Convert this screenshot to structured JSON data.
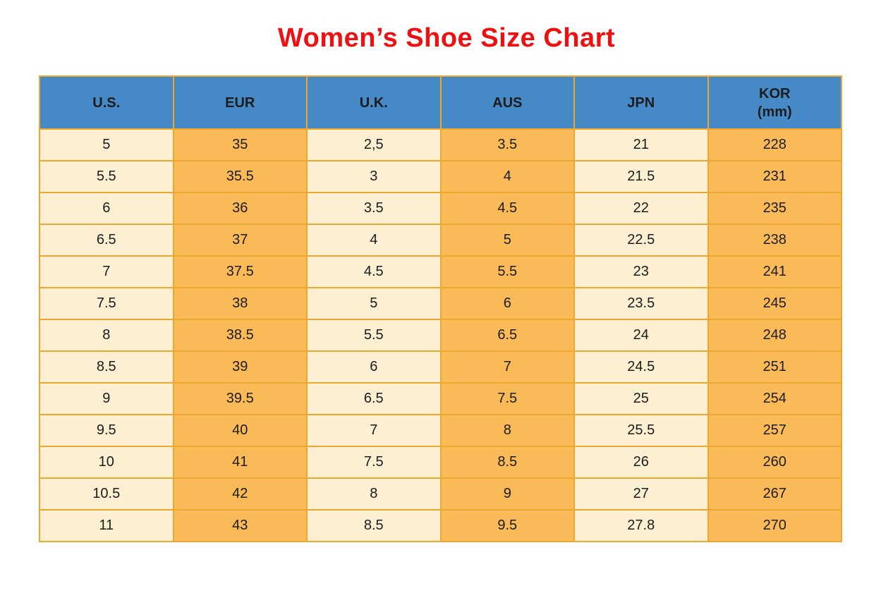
{
  "title": {
    "text": "Women’s Shoe Size Chart",
    "color": "#ee1111"
  },
  "colors": {
    "header_bg": "#4689c7",
    "col_light": "#fdefd2",
    "col_orange": "#fbba58",
    "border": "#eda72e",
    "text": "#1c1c1c",
    "background": "#ffffff"
  },
  "table": {
    "headers": [
      {
        "label": "U.S.",
        "sub": ""
      },
      {
        "label": "EUR",
        "sub": ""
      },
      {
        "label": "U.K.",
        "sub": ""
      },
      {
        "label": "AUS",
        "sub": ""
      },
      {
        "label": "JPN",
        "sub": ""
      },
      {
        "label": "KOR",
        "sub": "(mm)"
      }
    ],
    "rows": [
      [
        "5",
        "35",
        "2,5",
        "3.5",
        "21",
        "228"
      ],
      [
        "5.5",
        "35.5",
        "3",
        "4",
        "21.5",
        "231"
      ],
      [
        "6",
        "36",
        "3.5",
        "4.5",
        "22",
        "235"
      ],
      [
        "6.5",
        "37",
        "4",
        "5",
        "22.5",
        "238"
      ],
      [
        "7",
        "37.5",
        "4.5",
        "5.5",
        "23",
        "241"
      ],
      [
        "7.5",
        "38",
        "5",
        "6",
        "23.5",
        "245"
      ],
      [
        "8",
        "38.5",
        "5.5",
        "6.5",
        "24",
        "248"
      ],
      [
        "8.5",
        "39",
        "6",
        "7",
        "24.5",
        "251"
      ],
      [
        "9",
        "39.5",
        "6.5",
        "7.5",
        "25",
        "254"
      ],
      [
        "9.5",
        "40",
        "7",
        "8",
        "25.5",
        "257"
      ],
      [
        "10",
        "41",
        "7.5",
        "8.5",
        "26",
        "260"
      ],
      [
        "10.5",
        "42",
        "8",
        "9",
        "27",
        "267"
      ],
      [
        "11",
        "43",
        "8.5",
        "9.5",
        "27.8",
        "270"
      ]
    ]
  },
  "chart_data": {
    "type": "table",
    "title": "Women’s Shoe Size Chart",
    "columns": [
      "U.S.",
      "EUR",
      "U.K.",
      "AUS",
      "JPN",
      "KOR (mm)"
    ],
    "rows": [
      [
        "5",
        "35",
        "2,5",
        "3.5",
        "21",
        "228"
      ],
      [
        "5.5",
        "35.5",
        "3",
        "4",
        "21.5",
        "231"
      ],
      [
        "6",
        "36",
        "3.5",
        "4.5",
        "22",
        "235"
      ],
      [
        "6.5",
        "37",
        "4",
        "5",
        "22.5",
        "238"
      ],
      [
        "7",
        "37.5",
        "4.5",
        "5.5",
        "23",
        "241"
      ],
      [
        "7.5",
        "38",
        "5",
        "6",
        "23.5",
        "245"
      ],
      [
        "8",
        "38.5",
        "5.5",
        "6.5",
        "24",
        "248"
      ],
      [
        "8.5",
        "39",
        "6",
        "7",
        "24.5",
        "251"
      ],
      [
        "9",
        "39.5",
        "6.5",
        "7.5",
        "25",
        "254"
      ],
      [
        "9.5",
        "40",
        "7",
        "8",
        "25.5",
        "257"
      ],
      [
        "10",
        "41",
        "7.5",
        "8.5",
        "26",
        "260"
      ],
      [
        "10.5",
        "42",
        "8",
        "9",
        "27",
        "267"
      ],
      [
        "11",
        "43",
        "8.5",
        "9.5",
        "27.8",
        "270"
      ]
    ]
  }
}
